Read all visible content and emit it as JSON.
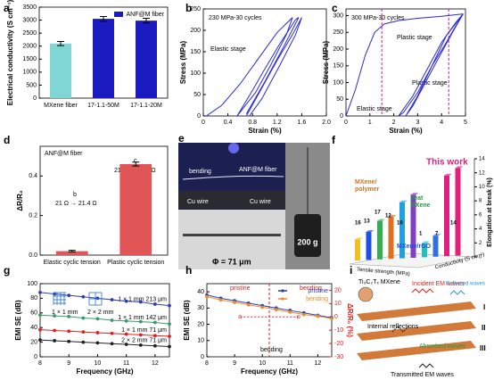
{
  "chart_data": [
    {
      "label": "a",
      "type": "bar",
      "ylabel": "Electrical conductivity (S cm⁻¹)",
      "categories": [
        "MXene fiber",
        "17-1.1-50M",
        "17-1.1-20M"
      ],
      "series": [
        {
          "color": "#7fd6d2",
          "values": [
            2100,
            null,
            null
          ],
          "errors": [
            80,
            null,
            null
          ]
        },
        {
          "name": "ANF@M fiber",
          "color": "#1a1ac0",
          "values": [
            null,
            3050,
            2980
          ],
          "errors": [
            null,
            90,
            90
          ]
        }
      ],
      "ylim": [
        0,
        3500
      ],
      "yticks": [
        0,
        500,
        1000,
        1500,
        2000,
        2500,
        3000,
        3500
      ],
      "legend": "upper right"
    },
    {
      "label": "b",
      "type": "line",
      "xlabel": "Strain (%)",
      "ylabel": "Stress (MPa)",
      "annotations": [
        "230 MPa-30 cycles",
        "Elastic stage"
      ],
      "series": [
        {
          "color": "#2a2ad8",
          "x": [
            0.05,
            0.3,
            0.6,
            0.9,
            1.2,
            1.45,
            1.35,
            1.1,
            0.85,
            0.55
          ],
          "values": [
            0,
            25,
            75,
            135,
            195,
            230,
            190,
            120,
            55,
            0
          ]
        },
        {
          "color": "#2a2ad8",
          "x": [
            0.55,
            0.8,
            1.0,
            1.25,
            1.5,
            1.55,
            1.3,
            1.0,
            0.7
          ],
          "values": [
            0,
            60,
            110,
            170,
            225,
            230,
            160,
            80,
            5
          ]
        },
        {
          "color": "#2a2ad8",
          "x": [
            0.7,
            0.95,
            1.2,
            1.45,
            1.6,
            1.5,
            1.25,
            0.95,
            0.75
          ],
          "values": [
            0,
            65,
            130,
            190,
            230,
            190,
            120,
            40,
            0
          ]
        }
      ],
      "xlim": [
        0,
        2
      ],
      "xticks": [
        0,
        0.4,
        0.8,
        1.2,
        1.6,
        {
          "value": 2,
          "label": "2.0"
        }
      ],
      "ylim": [
        0,
        250
      ],
      "yticks": [
        0,
        50,
        100,
        150,
        200,
        250
      ]
    },
    {
      "label": "c",
      "type": "line",
      "xlabel": "Strain (%)",
      "ylabel": "Stress (MPa)",
      "annotations": [
        "300 MPa-30 cycles",
        "Plastic stage",
        "Plastic stage",
        "Elastic stage"
      ],
      "series": [
        {
          "color": "#2a2ad8",
          "x": [
            0,
            0.4,
            0.8,
            1.2,
            1.6,
            2.2,
            3,
            4,
            4.9
          ],
          "values": [
            0,
            80,
            180,
            250,
            275,
            285,
            292,
            298,
            305
          ]
        },
        {
          "color": "#2a2ad8",
          "x": [
            4.9,
            4.6,
            4.2,
            3.6,
            3.0,
            2.4,
            2.2,
            2.8,
            3.4,
            4.0,
            4.6,
            4.9
          ],
          "values": [
            305,
            270,
            220,
            150,
            70,
            10,
            0,
            60,
            140,
            220,
            280,
            305
          ]
        },
        {
          "color": "#2a2ad8",
          "x": [
            4.9,
            4.5,
            4.0,
            3.4,
            2.8,
            2.5,
            3.0,
            3.6,
            4.2,
            4.9
          ],
          "values": [
            305,
            255,
            190,
            110,
            30,
            0,
            60,
            150,
            240,
            305
          ]
        }
      ],
      "guides": [
        1.5,
        4.3
      ],
      "guide_color": "#d02090",
      "xlim": [
        0,
        5
      ],
      "xticks": [
        0,
        1,
        2,
        3,
        4,
        5
      ],
      "ylim": [
        0,
        320
      ],
      "yticks": [
        0,
        50,
        100,
        150,
        200,
        250,
        300
      ]
    },
    {
      "label": "d",
      "type": "bar",
      "ylabel": "ΔR/R₀",
      "annotations": [
        "ANF@M fiber",
        "b",
        "21 Ω → 21.4 Ω",
        "c",
        "21 Ω → 30.9 Ω"
      ],
      "categories": [
        "Elastic cyclic tension",
        "Plastic cyclic tension"
      ],
      "series": [
        {
          "color": "#e05555",
          "values": [
            0.02,
            0.46
          ],
          "errors": [
            0.004,
            0.01
          ]
        }
      ],
      "ylim": [
        0,
        0.55
      ],
      "yticks": [
        {
          "value": 0,
          "label": "0.0"
        },
        0.2,
        0.4
      ]
    },
    {
      "label": "f",
      "type": "bar3d",
      "zlabel": "Elongation at break (%)",
      "xlabel": "Tensile strength (MPa)",
      "ylabel": "Conductivity (S cm⁻¹)",
      "annotations": [
        "This work",
        "MXene/",
        "polymer",
        "neat",
        "MXene",
        "MXene/rGO",
        "16",
        "13",
        "17",
        "12",
        "10",
        "1",
        "7",
        "14"
      ],
      "values": [
        3,
        4,
        5.5,
        6,
        8,
        9,
        2,
        3,
        11.5,
        12.5
      ],
      "colors": [
        "#f0c020",
        "#2050e0",
        "#30b050",
        "#e07020",
        "#20a0e0",
        "#8040c0",
        "#20c0c0",
        "#3070e0",
        "#e0207a",
        "#e0207a"
      ],
      "zlim": [
        0,
        14
      ],
      "zticks": [
        0,
        2,
        4,
        6,
        8,
        10,
        12,
        14
      ]
    },
    {
      "label": "g",
      "type": "line",
      "xlabel": "Frequency (GHz)",
      "ylabel": "EMI SE (dB)",
      "legend": "inline",
      "markers": true,
      "annotations": [
        "1 × 1 mm",
        "2 × 2 mm"
      ],
      "x": [
        8,
        8.5,
        9,
        9.5,
        10,
        10.5,
        11,
        11.5,
        12,
        12.5
      ],
      "series": [
        {
          "name": "1 × 1 mm  213 μm",
          "color": "#2f3fb0",
          "values": [
            88,
            86,
            84,
            82,
            80,
            78,
            76,
            75,
            72,
            70
          ]
        },
        {
          "name": "1 × 1 mm  142 μm",
          "color": "#3a9a6a",
          "values": [
            57,
            56,
            55,
            53,
            52,
            50,
            49,
            48,
            47,
            45
          ]
        },
        {
          "name": "1 × 1 mm  71 μm",
          "color": "#e0201e",
          "values": [
            37,
            36,
            35,
            34,
            33,
            32,
            31,
            30,
            29,
            28
          ]
        },
        {
          "name": "2 × 2 mm  71 μm",
          "color": "#222222",
          "values": [
            23,
            22,
            21,
            20,
            19,
            18,
            17,
            16,
            15,
            14
          ]
        }
      ],
      "xlim": [
        8,
        12.5
      ],
      "xticks": [
        8,
        9,
        10,
        11,
        12
      ],
      "ylim": [
        0,
        100
      ],
      "yticks": [
        0,
        20,
        40,
        60,
        80,
        100
      ]
    },
    {
      "label": "h",
      "type": "line",
      "xlabel": "Frequency (GHz)",
      "ylabel": "EMI SE (dB)",
      "y2label": "ΔR/R₀ (%)",
      "legend": "upper right",
      "markers": true,
      "annotations": [
        "pristine",
        "bending",
        "bending"
      ],
      "x": [
        8,
        8.5,
        9,
        9.5,
        10,
        10.5,
        11,
        11.5,
        12,
        12.5
      ],
      "series": [
        {
          "name": "pristine",
          "color": "#2040c0",
          "values": [
            38,
            36,
            34.5,
            33,
            31.5,
            30,
            28.5,
            27,
            25.5,
            24
          ]
        },
        {
          "name": "bending",
          "color": "#f08a24",
          "values": [
            37,
            35,
            33.5,
            32,
            30.5,
            29,
            27.5,
            26,
            25,
            23.5
          ]
        },
        {
          "color": "#e02020",
          "axis": "y2",
          "dash": true,
          "x": [
            9.2,
            11.3
          ],
          "values": [
            0,
            0
          ]
        }
      ],
      "guides": [
        10.25
      ],
      "guide_color": "#e02020",
      "xlim": [
        8,
        12.5
      ],
      "xticks": [
        8,
        9,
        10,
        11,
        12
      ],
      "ylim": [
        0,
        45
      ],
      "yticks": [
        0,
        10,
        20,
        30,
        40
      ],
      "y2lim": [
        -30,
        25
      ],
      "y2ticks": [
        -30,
        -20,
        -10,
        0,
        10,
        20
      ]
    }
  ],
  "photo": {
    "label": "e",
    "texts": [
      "bending",
      "ANF@M fiber",
      "Cu wire",
      "Cu wire",
      "Φ = 71 μm",
      "200 g"
    ]
  },
  "schematic": {
    "label": "i",
    "texts": [
      "Ti₃C₂Tₓ MXene",
      "Incident EM waves",
      "Reflected waves",
      "Internal reflections",
      "Absorbed waves",
      "Transmitted EM waves",
      "I",
      "II",
      "III"
    ]
  }
}
